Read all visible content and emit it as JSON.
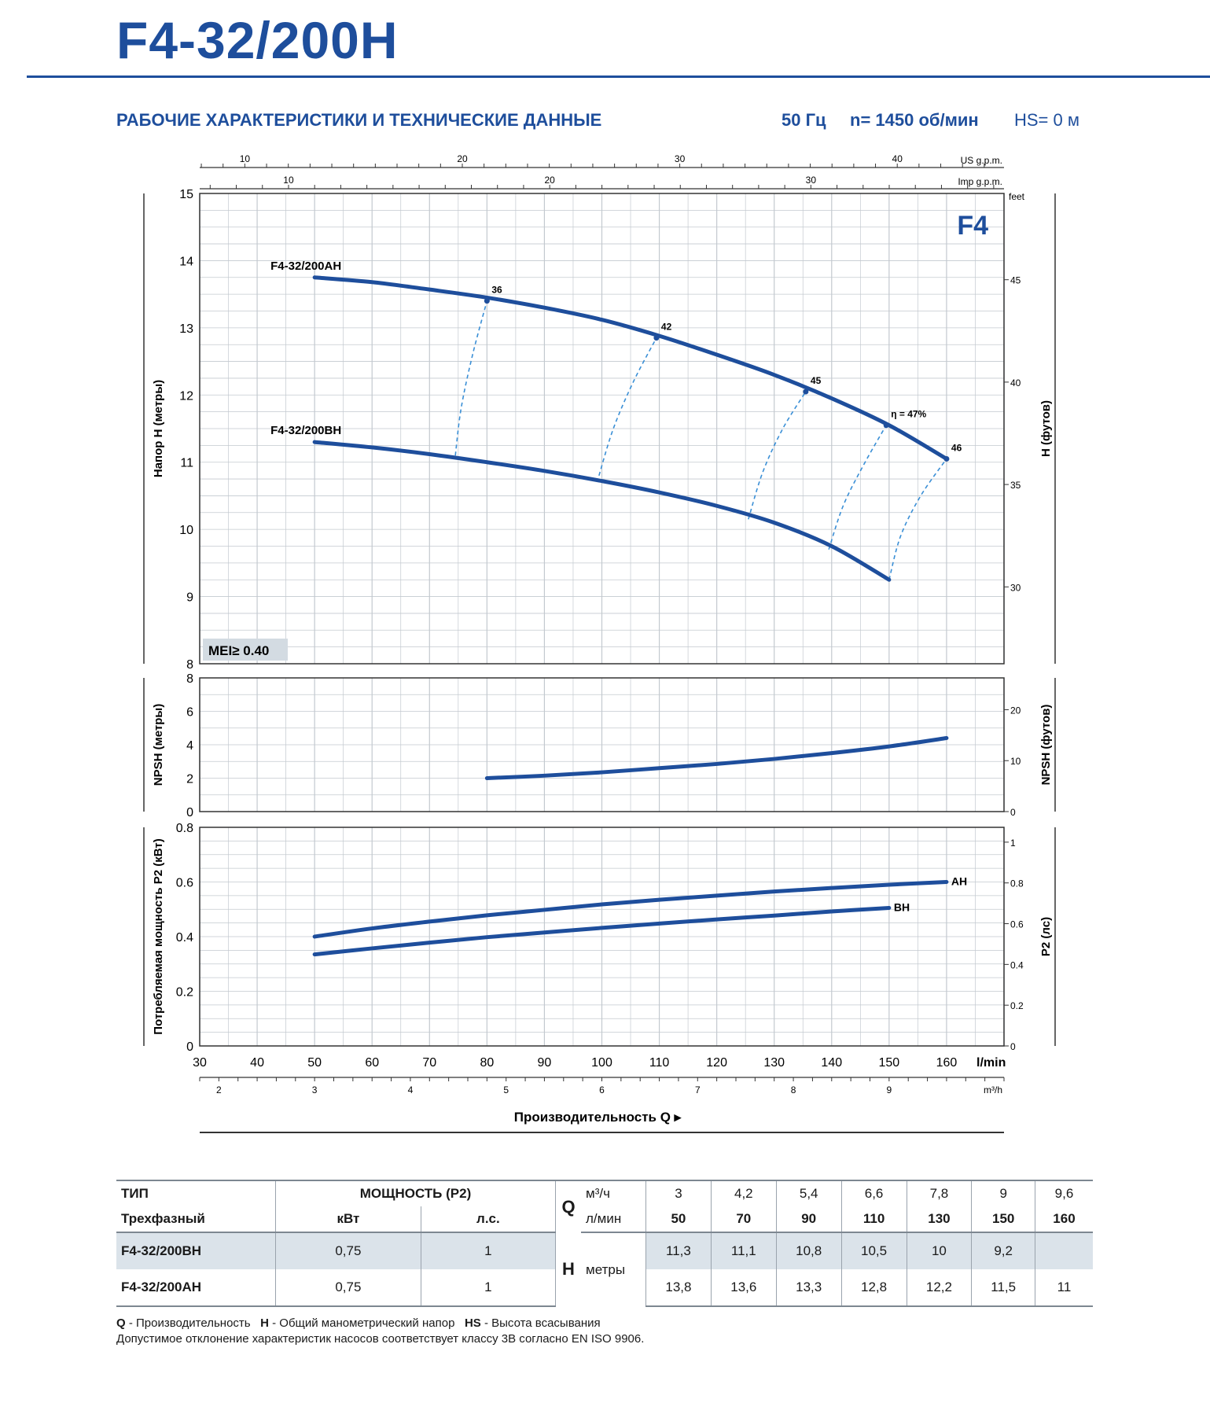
{
  "header": {
    "model": "F4-32/200H",
    "section_title": "РАБОЧИЕ ХАРАКТЕРИСТИКИ И ТЕХНИЧЕСКИЕ ДАННЫЕ",
    "frequency": "50 Гц",
    "speed": "n= 1450 об/мин",
    "suction": "HS= 0 м"
  },
  "colors": {
    "brand": "#1e4e9c",
    "curve": "#1e4e9c",
    "efficiency": "#3a8fd6",
    "grid": "#c3c9cf",
    "table_shade": "#dbe3ea"
  },
  "chart_data": [
    {
      "type": "line",
      "title": "",
      "badge": "F4",
      "mei": "MEI≥ 0.40",
      "xlabel": "Производительность Q",
      "x_unit": "l/min",
      "x_unit_m3h": "m³/h",
      "x_unit_us": "US g.p.m.",
      "x_unit_imp": "Imp g.p.m.",
      "xlim": [
        30,
        170
      ],
      "x_ticks": [
        30,
        40,
        50,
        60,
        70,
        80,
        90,
        100,
        110,
        120,
        130,
        140,
        150,
        160
      ],
      "x_ticks_m3h": [
        2,
        3,
        4,
        5,
        6,
        7,
        8,
        9
      ],
      "x_ticks_us": [
        10,
        20,
        30,
        40
      ],
      "x_ticks_imp": [
        10,
        20,
        30
      ],
      "ylabel": "Напор H (метры)",
      "ylim": [
        8,
        15
      ],
      "y_ticks": [
        8,
        9,
        10,
        11,
        12,
        13,
        14,
        15
      ],
      "y2label": "H (футов)",
      "y2_unit": "feet",
      "y2_ticks": [
        30,
        35,
        40,
        45
      ],
      "grid": true,
      "series": [
        {
          "name": "F4-32/200AH",
          "x": [
            50,
            60,
            70,
            80,
            90,
            100,
            110,
            120,
            130,
            140,
            150,
            160
          ],
          "y": [
            13.75,
            13.68,
            13.57,
            13.45,
            13.3,
            13.12,
            12.88,
            12.6,
            12.3,
            11.95,
            11.55,
            11.05
          ]
        },
        {
          "name": "F4-32/200BH",
          "x": [
            50,
            60,
            70,
            80,
            90,
            100,
            110,
            120,
            130,
            140,
            150
          ],
          "y": [
            11.3,
            11.22,
            11.12,
            11.0,
            10.87,
            10.72,
            10.55,
            10.35,
            10.1,
            9.75,
            9.25
          ]
        }
      ],
      "efficiency": [
        {
          "label": "36",
          "points": [
            [
              74.5,
              11.1
            ],
            [
              75.5,
              11.8
            ],
            [
              77.5,
              12.6
            ],
            [
              80,
              13.4
            ]
          ]
        },
        {
          "label": "42",
          "points": [
            [
              99.5,
              10.8
            ],
            [
              102,
              11.5
            ],
            [
              105.5,
              12.2
            ],
            [
              109.5,
              12.85
            ]
          ]
        },
        {
          "label": "45",
          "points": [
            [
              125.5,
              10.15
            ],
            [
              128,
              10.85
            ],
            [
              131.5,
              11.5
            ],
            [
              135.5,
              12.05
            ]
          ]
        },
        {
          "label": "η = 47%",
          "points": [
            [
              139.5,
              9.7
            ],
            [
              142,
              10.35
            ],
            [
              145.5,
              10.95
            ],
            [
              149.5,
              11.55
            ]
          ]
        },
        {
          "label": "46",
          "points": [
            [
              150,
              9.25
            ],
            [
              152,
              9.9
            ],
            [
              155.5,
              10.5
            ],
            [
              160,
              11.05
            ]
          ]
        }
      ]
    },
    {
      "type": "line",
      "ylabel": "NPSH (метры)",
      "ylim": [
        0,
        8
      ],
      "y_ticks": [
        0,
        2,
        4,
        6,
        8
      ],
      "y2label": "NPSH (футов)",
      "y2_ticks": [
        0,
        10,
        20
      ],
      "grid": true,
      "series": [
        {
          "name": "",
          "x": [
            80,
            90,
            100,
            110,
            120,
            130,
            140,
            150,
            160
          ],
          "y": [
            2.0,
            2.15,
            2.35,
            2.6,
            2.85,
            3.15,
            3.5,
            3.9,
            4.4
          ]
        }
      ]
    },
    {
      "type": "line",
      "ylabel": "Потребляемая мощность P2 (кВт)",
      "ylim": [
        0,
        0.8
      ],
      "y_ticks": [
        0,
        0.2,
        0.4,
        0.6,
        0.8
      ],
      "y2label": "P2 (лс)",
      "y2_ticks": [
        0,
        0.2,
        0.4,
        0.6,
        0.8,
        1
      ],
      "grid": true,
      "series": [
        {
          "name": "AH",
          "x": [
            50,
            60,
            70,
            80,
            90,
            100,
            110,
            120,
            130,
            140,
            150,
            160
          ],
          "y": [
            0.4,
            0.43,
            0.455,
            0.478,
            0.498,
            0.518,
            0.535,
            0.55,
            0.565,
            0.578,
            0.59,
            0.6
          ]
        },
        {
          "name": "BH",
          "x": [
            50,
            60,
            70,
            80,
            90,
            100,
            110,
            120,
            130,
            140,
            150
          ],
          "y": [
            0.335,
            0.357,
            0.378,
            0.398,
            0.415,
            0.432,
            0.448,
            0.463,
            0.477,
            0.492,
            0.505
          ]
        }
      ]
    }
  ],
  "table": {
    "h_type": "ТИП",
    "h_power": "МОЩНОСТЬ (P2)",
    "h_q": "Q",
    "h_m3h": "м³/ч",
    "q_m3h": [
      "3",
      "4,2",
      "5,4",
      "6,6",
      "7,8",
      "9",
      "9,6"
    ],
    "h_phase": "Трехфазный",
    "h_kw": "кВт",
    "h_hp": "л.с.",
    "h_lmin": "л/мин",
    "q_lmin": [
      "50",
      "70",
      "90",
      "110",
      "130",
      "150",
      "160"
    ],
    "h_h": "H",
    "h_meters": "метры",
    "rows": [
      {
        "name": "F4-32/200BH",
        "kw": "0,75",
        "hp": "1",
        "h": [
          "11,3",
          "11,1",
          "10,8",
          "10,5",
          "10",
          "9,2",
          ""
        ]
      },
      {
        "name": "F4-32/200AH",
        "kw": "0,75",
        "hp": "1",
        "h": [
          "13,8",
          "13,6",
          "13,3",
          "12,8",
          "12,2",
          "11,5",
          "11"
        ]
      }
    ]
  },
  "footer": {
    "q_key": "Q",
    "q_text": " - Производительность",
    "h_key": "H",
    "h_text": " - Общий манометрический напор",
    "hs_key": "HS",
    "hs_text": " - Высота всасывания",
    "note": "Допустимое отклонение характеристик насосов соответствует классу 3B согласно EN ISO 9906."
  }
}
